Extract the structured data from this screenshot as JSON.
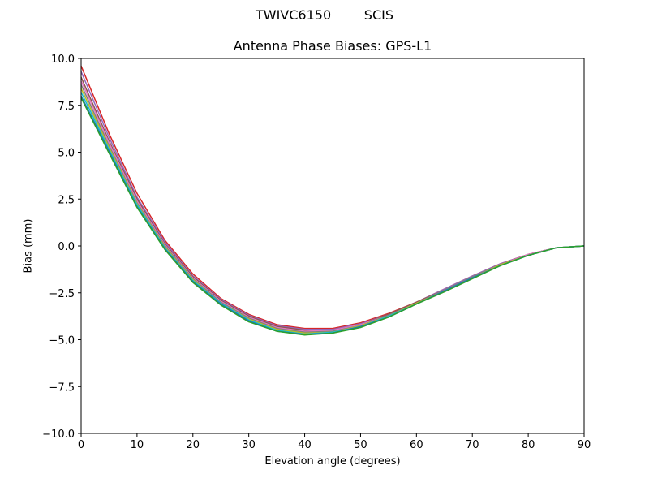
{
  "figure": {
    "suptitle": "TWIVC6150        SCIS"
  },
  "chart_data": {
    "type": "line",
    "title": "Antenna Phase Biases: GPS-L1",
    "xlabel": "Elevation angle (degrees)",
    "ylabel": "Bias (mm)",
    "xlim": [
      0,
      90
    ],
    "ylim": [
      -10,
      10
    ],
    "xticks": [
      0,
      10,
      20,
      30,
      40,
      50,
      60,
      70,
      80,
      90
    ],
    "yticks": [
      -10.0,
      -7.5,
      -5.0,
      -2.5,
      0.0,
      2.5,
      5.0,
      7.5,
      10.0
    ],
    "ytick_labels": [
      "−10.0",
      "−7.5",
      "−5.0",
      "−2.5",
      "0.0",
      "2.5",
      "5.0",
      "7.5",
      "10.0"
    ],
    "grid": false,
    "legend": "none",
    "x": [
      0,
      5,
      10,
      15,
      20,
      25,
      30,
      35,
      40,
      45,
      50,
      55,
      60,
      65,
      70,
      75,
      80,
      85,
      90
    ],
    "series": [
      {
        "color": "#d62728",
        "values": [
          9.6,
          6.0,
          2.8,
          0.3,
          -1.5,
          -2.8,
          -3.65,
          -4.2,
          -4.4,
          -4.4,
          -4.1,
          -3.6,
          -3.0,
          -2.3,
          -1.6,
          -0.95,
          -0.45,
          -0.1,
          0.0
        ]
      },
      {
        "color": "#9467bd",
        "values": [
          9.3,
          5.8,
          2.6,
          0.2,
          -1.6,
          -2.85,
          -3.7,
          -4.25,
          -4.45,
          -4.45,
          -4.15,
          -3.65,
          -3.0,
          -2.3,
          -1.6,
          -0.95,
          -0.45,
          -0.1,
          0.0
        ]
      },
      {
        "color": "#8c564b",
        "values": [
          9.0,
          5.6,
          2.5,
          0.1,
          -1.65,
          -2.9,
          -3.75,
          -4.3,
          -4.5,
          -4.5,
          -4.2,
          -3.65,
          -3.0,
          -2.35,
          -1.65,
          -1.0,
          -0.45,
          -0.1,
          0.0
        ]
      },
      {
        "color": "#e377c2",
        "values": [
          8.8,
          5.5,
          2.4,
          0.05,
          -1.7,
          -2.95,
          -3.8,
          -4.35,
          -4.55,
          -4.5,
          -4.2,
          -3.7,
          -3.05,
          -2.35,
          -1.65,
          -1.0,
          -0.45,
          -0.1,
          0.0
        ]
      },
      {
        "color": "#7f7f7f",
        "values": [
          8.6,
          5.35,
          2.3,
          0.0,
          -1.75,
          -3.0,
          -3.85,
          -4.4,
          -4.6,
          -4.55,
          -4.25,
          -3.7,
          -3.05,
          -2.35,
          -1.65,
          -1.0,
          -0.5,
          -0.1,
          0.0
        ]
      },
      {
        "color": "#bcbd22",
        "values": [
          8.4,
          5.25,
          2.25,
          -0.05,
          -1.8,
          -3.05,
          -3.9,
          -4.45,
          -4.65,
          -4.6,
          -4.25,
          -3.75,
          -3.05,
          -2.4,
          -1.7,
          -1.0,
          -0.5,
          -0.1,
          0.0
        ]
      },
      {
        "color": "#17becf",
        "values": [
          8.2,
          5.15,
          2.2,
          -0.1,
          -1.85,
          -3.05,
          -3.95,
          -4.5,
          -4.7,
          -4.6,
          -4.3,
          -3.75,
          -3.1,
          -2.4,
          -1.7,
          -1.05,
          -0.5,
          -0.1,
          0.0
        ]
      },
      {
        "color": "#1f77b4",
        "values": [
          8.0,
          5.05,
          2.1,
          -0.15,
          -1.9,
          -3.1,
          -4.0,
          -4.55,
          -4.72,
          -4.65,
          -4.3,
          -3.8,
          -3.1,
          -2.4,
          -1.7,
          -1.05,
          -0.5,
          -0.1,
          0.0
        ]
      },
      {
        "color": "#2ca02c",
        "values": [
          7.9,
          4.95,
          2.05,
          -0.2,
          -1.95,
          -3.15,
          -4.05,
          -4.55,
          -4.75,
          -4.65,
          -4.35,
          -3.8,
          -3.1,
          -2.45,
          -1.75,
          -1.05,
          -0.5,
          -0.1,
          0.0
        ]
      }
    ]
  }
}
